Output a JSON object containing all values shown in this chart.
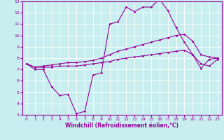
{
  "background_color": "#c8eef0",
  "grid_color": "#ffffff",
  "line_color": "#990099",
  "xlim": [
    -0.5,
    23.5
  ],
  "ylim": [
    3,
    13
  ],
  "xticks": [
    0,
    1,
    2,
    3,
    4,
    5,
    6,
    7,
    8,
    9,
    10,
    11,
    12,
    13,
    14,
    15,
    16,
    17,
    18,
    19,
    20,
    21,
    22,
    23
  ],
  "yticks": [
    3,
    4,
    5,
    6,
    7,
    8,
    9,
    10,
    11,
    12,
    13
  ],
  "xlabel": "Windchill (Refroidissement éolien,°C)",
  "curve1_x": [
    0,
    1,
    2,
    3,
    4,
    5,
    6,
    7,
    8,
    9,
    10,
    11,
    12,
    13,
    14,
    15,
    16,
    17,
    18,
    19,
    20,
    21,
    22,
    23
  ],
  "curve1_y": [
    7.5,
    7.0,
    7.0,
    5.5,
    4.7,
    4.8,
    3.1,
    3.3,
    6.5,
    6.7,
    11.0,
    11.2,
    12.5,
    12.1,
    12.5,
    12.5,
    13.2,
    12.2,
    10.7,
    9.4,
    8.3,
    7.1,
    7.9,
    8.0
  ],
  "curve2_x": [
    0,
    1,
    2,
    3,
    4,
    5,
    6,
    7,
    8,
    9,
    10,
    11,
    12,
    13,
    14,
    15,
    16,
    17,
    18,
    19,
    20,
    21,
    22,
    23
  ],
  "curve2_y": [
    7.5,
    7.2,
    7.3,
    7.4,
    7.5,
    7.6,
    7.6,
    7.7,
    7.8,
    8.0,
    8.3,
    8.6,
    8.8,
    9.0,
    9.2,
    9.4,
    9.6,
    9.8,
    10.0,
    10.1,
    9.5,
    8.3,
    8.1,
    8.0
  ],
  "curve3_x": [
    0,
    1,
    2,
    3,
    4,
    5,
    6,
    7,
    8,
    9,
    10,
    11,
    12,
    13,
    14,
    15,
    16,
    17,
    18,
    19,
    20,
    21,
    22,
    23
  ],
  "curve3_y": [
    7.5,
    7.2,
    7.2,
    7.2,
    7.3,
    7.3,
    7.3,
    7.4,
    7.5,
    7.6,
    7.7,
    7.9,
    8.0,
    8.1,
    8.2,
    8.3,
    8.4,
    8.5,
    8.6,
    8.7,
    8.3,
    7.5,
    7.3,
    7.9
  ],
  "tick_fontsize": 4.5,
  "xlabel_fontsize": 5.5,
  "marker_size": 1.8,
  "line_width": 0.8
}
